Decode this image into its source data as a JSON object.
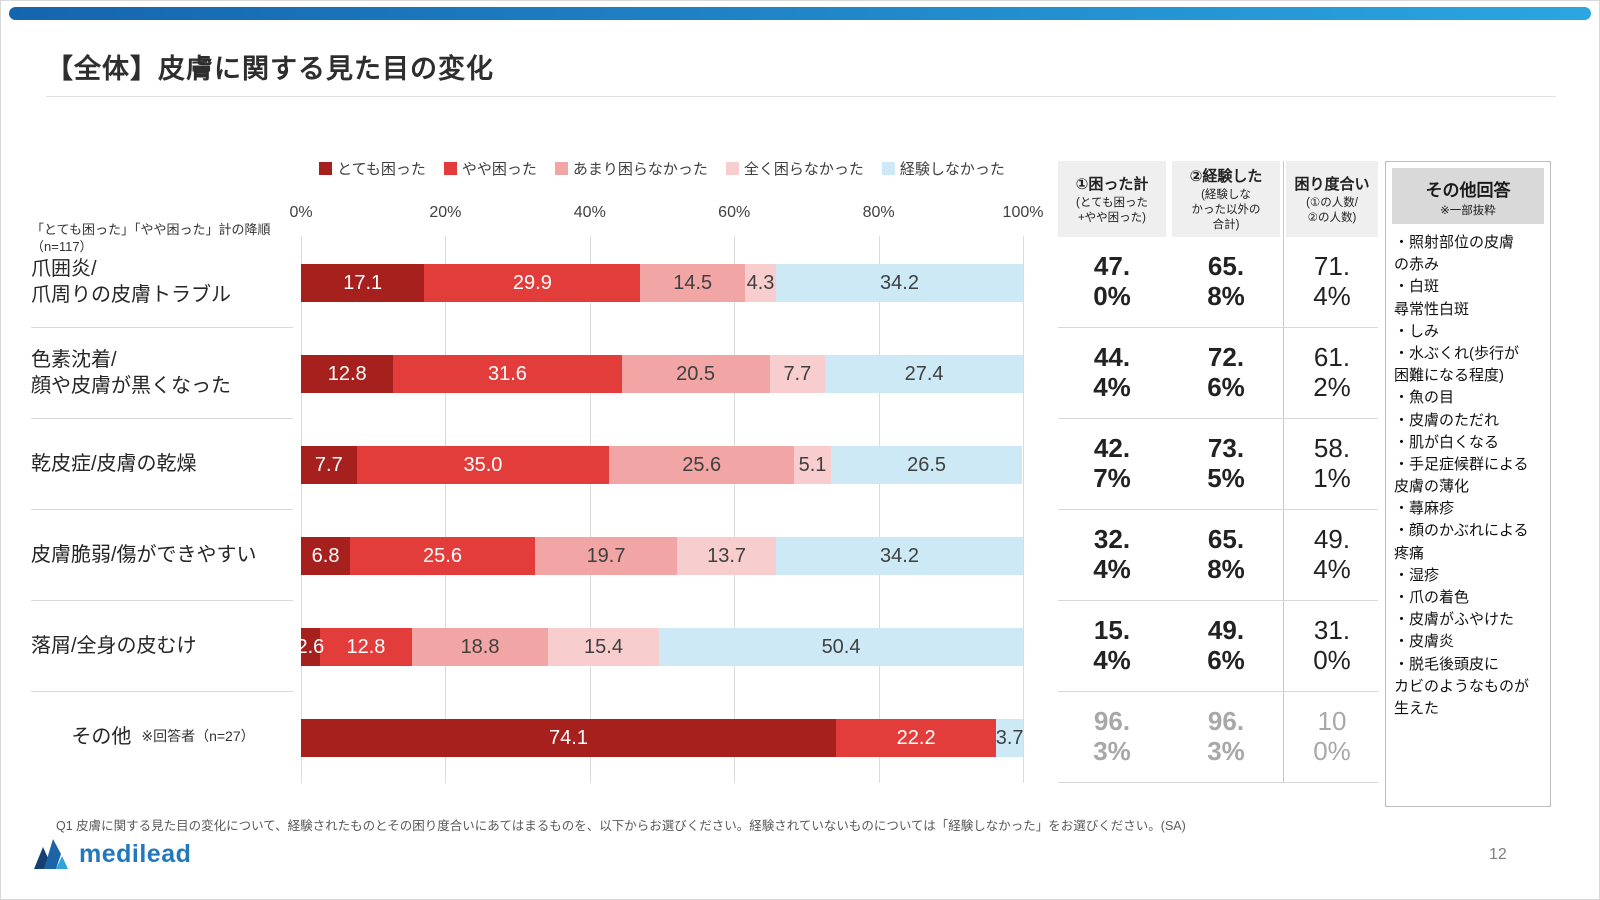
{
  "page": {
    "title": "【全体】皮膚に関する見た目の変化",
    "footnote": "Q1 皮膚に関する見た目の変化について、経験されたものとその困り度合いにあてはまるものを、以下からお選びください。経験されていないものについては「経験しなかった」をお選びください。(SA)",
    "page_number": "12",
    "logo": "medilead"
  },
  "chart_data": {
    "type": "bar",
    "orientation": "horizontal-stacked",
    "sort_note_line1": "「とても困った」「やや困った」計の降順",
    "sort_note_line2": "（n=117）",
    "x_ticks": [
      "0%",
      "20%",
      "40%",
      "60%",
      "80%",
      "100%"
    ],
    "xlim": [
      0,
      100
    ],
    "grid": true,
    "legend": [
      {
        "label": "とても困った",
        "color": "#A6201E"
      },
      {
        "label": "やや困った",
        "color": "#E23D3B"
      },
      {
        "label": "あまり困らなかった",
        "color": "#F2A5A5"
      },
      {
        "label": "全く困らなかった",
        "color": "#F8CDCD"
      },
      {
        "label": "経験しなかった",
        "color": "#CDE9F6"
      }
    ],
    "rows": [
      {
        "label": "爪囲炎/\n爪周りの皮膚トラブル",
        "values": [
          17.1,
          29.9,
          14.5,
          4.3,
          34.2
        ]
      },
      {
        "label": "色素沈着/\n顔や皮膚が黒くなった",
        "values": [
          12.8,
          31.6,
          20.5,
          7.7,
          27.4
        ]
      },
      {
        "label": "乾皮症/皮膚の乾燥",
        "values": [
          7.7,
          35.0,
          25.6,
          5.1,
          26.5
        ]
      },
      {
        "label": "皮膚脆弱/傷ができやすい",
        "values": [
          6.8,
          25.6,
          19.7,
          13.7,
          34.2
        ]
      },
      {
        "label": "落屑/全身の皮むけ",
        "values": [
          2.6,
          12.8,
          18.8,
          15.4,
          50.4
        ]
      },
      {
        "label": "その他",
        "note": "※回答者（n=27）",
        "values": [
          74.1,
          22.2,
          0,
          0,
          3.7
        ]
      }
    ]
  },
  "table": {
    "headers": [
      {
        "title": "①困った計",
        "sub": "(とても困った\n+やや困った)"
      },
      {
        "title": "②経験した",
        "sub": "(経験しな\nかった以外の\n合計)"
      },
      {
        "title": "困り度合い",
        "sub": "(①の人数/\n②の人数)"
      }
    ],
    "rows": [
      {
        "troubled": "47.0%",
        "experienced": "65.8%",
        "degree": "71.4%",
        "muted": false
      },
      {
        "troubled": "44.4%",
        "experienced": "72.6%",
        "degree": "61.2%",
        "muted": false
      },
      {
        "troubled": "42.7%",
        "experienced": "73.5%",
        "degree": "58.1%",
        "muted": false
      },
      {
        "troubled": "32.4%",
        "experienced": "65.8%",
        "degree": "49.4%",
        "muted": false
      },
      {
        "troubled": "15.4%",
        "experienced": "49.6%",
        "degree": "31.0%",
        "muted": false
      },
      {
        "troubled": "96.3%",
        "experienced": "96.3%",
        "degree": "100%",
        "muted": true
      }
    ]
  },
  "other_panel": {
    "title": "その他回答",
    "subtitle": "※一部抜粋",
    "items": [
      "・照射部位の皮膚\nの赤み",
      "・白斑\n尋常性白斑",
      "・しみ",
      "・水ぶくれ(歩行が\n困難になる程度)",
      "・魚の目",
      "・皮膚のただれ",
      "・肌が白くなる",
      "・手足症候群による\n皮膚の薄化",
      "・蕁麻疹",
      "・顔のかぶれによる\n疼痛",
      "・湿疹",
      "・爪の着色",
      "・皮膚がふやけた",
      "・皮膚炎",
      "・脱毛後頭皮に\nカビのようなものが\n生えた"
    ]
  }
}
